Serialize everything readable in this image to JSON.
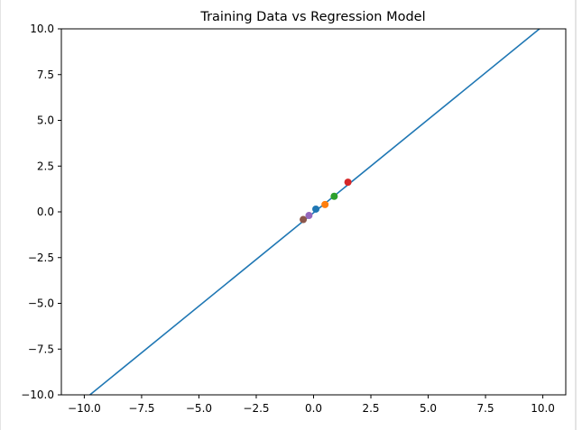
{
  "chart_data": {
    "type": "scatter",
    "title": "Training Data vs Regression Model",
    "xlabel": "",
    "ylabel": "",
    "xlim": [
      -11.0,
      11.0
    ],
    "ylim": [
      -10.0,
      10.0
    ],
    "x_ticks": [
      -10.0,
      -7.5,
      -5.0,
      -2.5,
      0.0,
      2.5,
      5.0,
      7.5,
      10.0
    ],
    "x_tick_labels": [
      "−10.0",
      "−7.5",
      "−5.0",
      "−2.5",
      "0.0",
      "2.5",
      "5.0",
      "7.5",
      "10.0"
    ],
    "y_ticks": [
      -10.0,
      -7.5,
      -5.0,
      -2.5,
      0.0,
      2.5,
      5.0,
      7.5,
      10.0
    ],
    "y_tick_labels": [
      "−10.0",
      "−7.5",
      "−5.0",
      "−2.5",
      "0.0",
      "2.5",
      "5.0",
      "7.5",
      "10.0"
    ],
    "grid": false,
    "legend": "none",
    "regression_line": {
      "x": [
        -10.0,
        10.0
      ],
      "y": [
        -10.25,
        10.15
      ],
      "color": "#1f77b4"
    },
    "points": [
      {
        "x": 0.1,
        "y": 0.15,
        "color": "#1f77b4"
      },
      {
        "x": 0.5,
        "y": 0.4,
        "color": "#ff7f0e"
      },
      {
        "x": 0.9,
        "y": 0.85,
        "color": "#2ca02c"
      },
      {
        "x": 1.5,
        "y": 1.62,
        "color": "#d62728"
      },
      {
        "x": -0.2,
        "y": -0.2,
        "color": "#9467bd"
      },
      {
        "x": -0.45,
        "y": -0.42,
        "color": "#8c564b"
      }
    ]
  }
}
